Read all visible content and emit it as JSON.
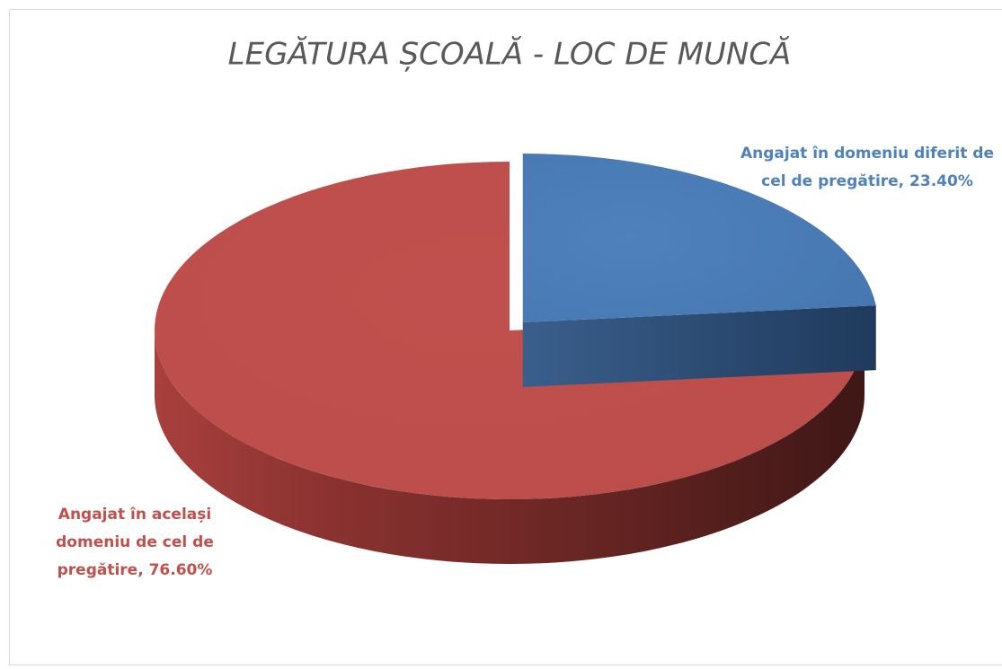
{
  "chart_data": {
    "type": "pie",
    "title": "LEGĂTURA ȘCOALĂ - LOC DE MUNCĂ",
    "values": [
      23.4,
      76.6
    ],
    "value_labels": [
      "Angajat în domeniu diferit de cel de pregătire, 23.40%",
      "Angajat în același domeniu de cel de pregătire, 76.60%"
    ],
    "colors": [
      "#4f81bd",
      "#c0504d"
    ]
  }
}
